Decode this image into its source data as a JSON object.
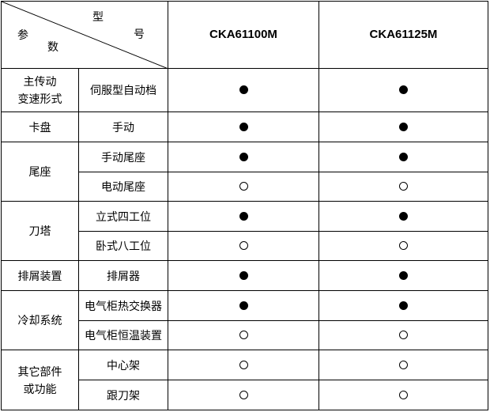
{
  "header": {
    "corner_top": "型",
    "corner_right": "号",
    "corner_left": "参",
    "corner_bottom": "数",
    "models": [
      "CKA61100M",
      "CKA61125M"
    ]
  },
  "groups": [
    {
      "label": "主传动\n变速形式",
      "items": [
        {
          "name": "伺服型自动档",
          "values": [
            "filled",
            "filled"
          ]
        }
      ]
    },
    {
      "label": "卡盘",
      "items": [
        {
          "name": "手动",
          "values": [
            "filled",
            "filled"
          ]
        }
      ]
    },
    {
      "label": "尾座",
      "items": [
        {
          "name": "手动尾座",
          "values": [
            "filled",
            "filled"
          ]
        },
        {
          "name": "电动尾座",
          "values": [
            "empty",
            "empty"
          ]
        }
      ]
    },
    {
      "label": "刀塔",
      "items": [
        {
          "name": "立式四工位",
          "values": [
            "filled",
            "filled"
          ]
        },
        {
          "name": "卧式八工位",
          "values": [
            "empty",
            "empty"
          ]
        }
      ]
    },
    {
      "label": "排屑装置",
      "items": [
        {
          "name": "排屑器",
          "values": [
            "filled",
            "filled"
          ]
        }
      ]
    },
    {
      "label": "冷却系统",
      "items": [
        {
          "name": "电气柜热交换器",
          "values": [
            "filled",
            "filled"
          ]
        },
        {
          "name": "电气柜恒温装置",
          "values": [
            "empty",
            "empty"
          ]
        }
      ]
    },
    {
      "label": "其它部件\n或功能",
      "items": [
        {
          "name": "中心架",
          "values": [
            "empty",
            "empty"
          ]
        },
        {
          "name": "跟刀架",
          "values": [
            "empty",
            "empty"
          ]
        }
      ]
    }
  ],
  "legend_colors": {
    "filled": "#000000",
    "empty": "#ffffff"
  }
}
